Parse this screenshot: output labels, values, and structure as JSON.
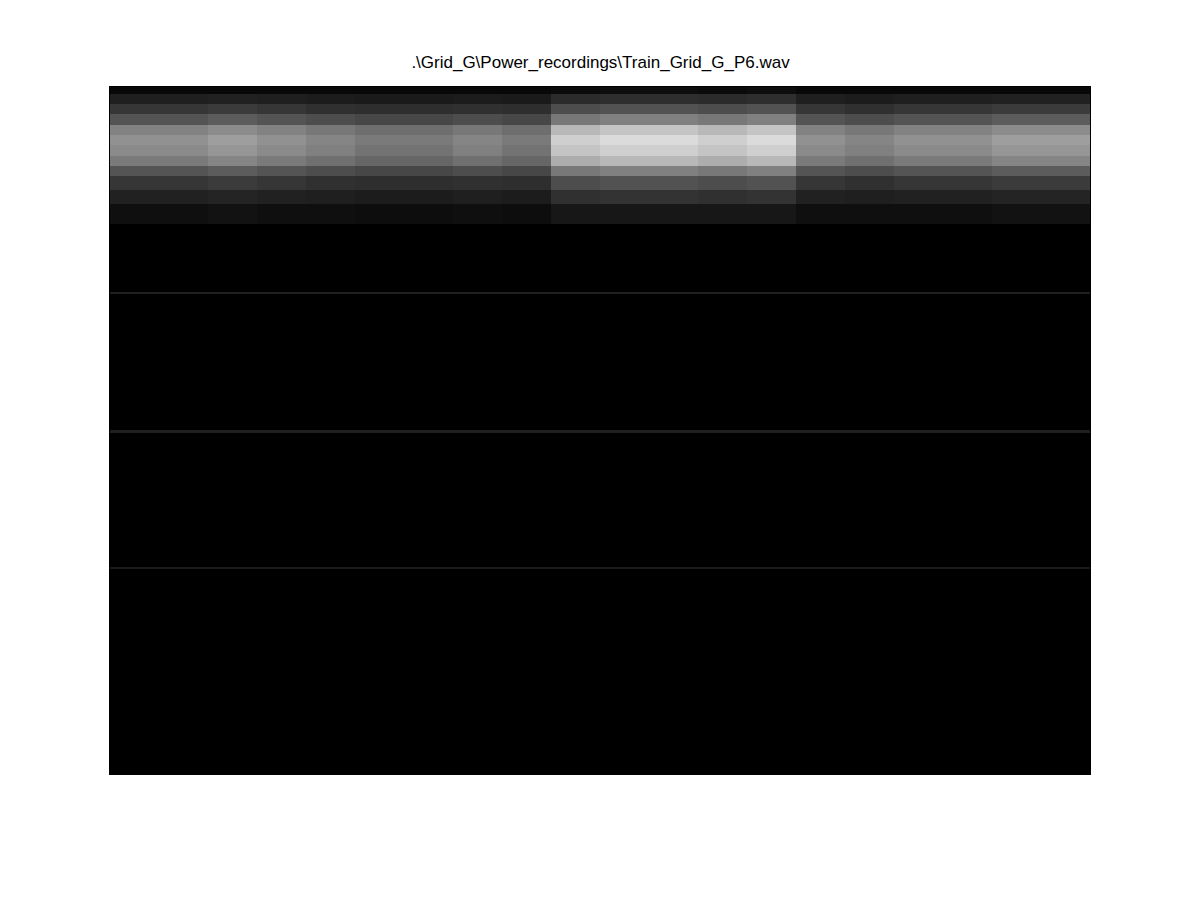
{
  "chart_data": {
    "type": "heatmap",
    "title": ".\\Grid_G\\Power_recordings\\Train_Grid_G_P6.wav",
    "tick_labels": false,
    "grid": false,
    "xlim": [
      0,
      100
    ],
    "ylim": [
      100,
      0
    ],
    "zlim": [
      0,
      100
    ],
    "x": [
      0,
      5,
      10,
      15,
      20,
      25,
      30,
      35,
      40,
      45,
      50,
      55,
      60,
      65,
      70,
      75,
      80,
      85,
      90,
      95,
      100
    ],
    "y": [
      0,
      1,
      2.5,
      4,
      5.5,
      7,
      8.5,
      10,
      11.5,
      13,
      15,
      17,
      20,
      29.8,
      30.2,
      49.9,
      50.3,
      69.8,
      70.2,
      100
    ],
    "cells": [
      [
        3,
        3,
        3,
        3,
        3,
        3,
        3,
        3,
        3,
        4,
        5,
        5,
        4,
        5,
        3,
        3,
        3,
        3,
        3,
        3
      ],
      [
        12,
        12,
        13,
        12,
        11,
        10,
        10,
        11,
        10,
        17,
        18,
        18,
        17,
        18,
        12,
        11,
        12,
        12,
        13,
        13
      ],
      [
        21,
        21,
        23,
        21,
        19,
        18,
        18,
        19,
        18,
        30,
        32,
        32,
        30,
        32,
        21,
        19,
        21,
        21,
        23,
        23
      ],
      [
        33,
        33,
        36,
        33,
        30,
        28,
        28,
        30,
        28,
        47,
        50,
        50,
        47,
        50,
        33,
        30,
        33,
        33,
        36,
        36
      ],
      [
        51,
        51,
        55,
        51,
        47,
        43,
        43,
        47,
        43,
        72,
        77,
        77,
        72,
        77,
        51,
        47,
        51,
        51,
        55,
        55
      ],
      [
        57,
        57,
        62,
        57,
        52,
        48,
        48,
        52,
        48,
        81,
        86,
        86,
        81,
        86,
        57,
        52,
        57,
        57,
        62,
        62
      ],
      [
        54,
        54,
        59,
        54,
        50,
        45,
        45,
        50,
        45,
        77,
        81,
        81,
        77,
        81,
        54,
        50,
        54,
        54,
        59,
        59
      ],
      [
        48,
        48,
        52,
        48,
        44,
        40,
        40,
        44,
        40,
        68,
        72,
        72,
        68,
        72,
        48,
        44,
        48,
        48,
        52,
        52
      ],
      [
        33,
        33,
        36,
        33,
        30,
        28,
        28,
        30,
        28,
        47,
        50,
        50,
        47,
        50,
        33,
        30,
        33,
        33,
        36,
        36
      ],
      [
        21,
        21,
        23,
        21,
        19,
        18,
        18,
        19,
        18,
        30,
        32,
        32,
        30,
        32,
        21,
        19,
        21,
        21,
        23,
        23
      ],
      [
        13,
        13,
        14,
        13,
        12,
        11,
        11,
        12,
        11,
        19,
        20,
        20,
        19,
        20,
        13,
        12,
        13,
        13,
        14,
        14
      ],
      [
        6,
        6,
        7,
        6,
        6,
        5,
        5,
        6,
        5,
        9,
        9,
        9,
        9,
        9,
        6,
        6,
        6,
        6,
        7,
        7
      ],
      [
        0,
        0,
        0,
        0,
        0,
        0,
        0,
        0,
        0,
        0,
        0,
        0,
        0,
        0,
        0,
        0,
        0,
        0,
        0,
        0
      ],
      [
        12,
        12,
        12,
        12,
        12,
        12,
        12,
        12,
        12,
        12,
        12,
        12,
        12,
        12,
        12,
        12,
        12,
        12,
        12,
        12
      ],
      [
        0,
        0,
        0,
        0,
        0,
        0,
        0,
        0,
        0,
        0,
        0,
        0,
        0,
        0,
        0,
        0,
        0,
        0,
        0,
        0
      ],
      [
        12,
        12,
        12,
        12,
        12,
        12,
        12,
        12,
        12,
        12,
        12,
        12,
        12,
        12,
        12,
        12,
        12,
        12,
        12,
        12
      ],
      [
        0,
        0,
        0,
        0,
        0,
        0,
        0,
        0,
        0,
        0,
        0,
        0,
        0,
        0,
        0,
        0,
        0,
        0,
        0,
        0
      ],
      [
        10,
        10,
        10,
        10,
        10,
        10,
        10,
        10,
        10,
        10,
        10,
        10,
        10,
        10,
        10,
        10,
        10,
        10,
        10,
        10
      ],
      [
        0,
        0,
        0,
        0,
        0,
        0,
        0,
        0,
        0,
        0,
        0,
        0,
        0,
        0,
        0,
        0,
        0,
        0,
        0,
        0
      ]
    ]
  }
}
